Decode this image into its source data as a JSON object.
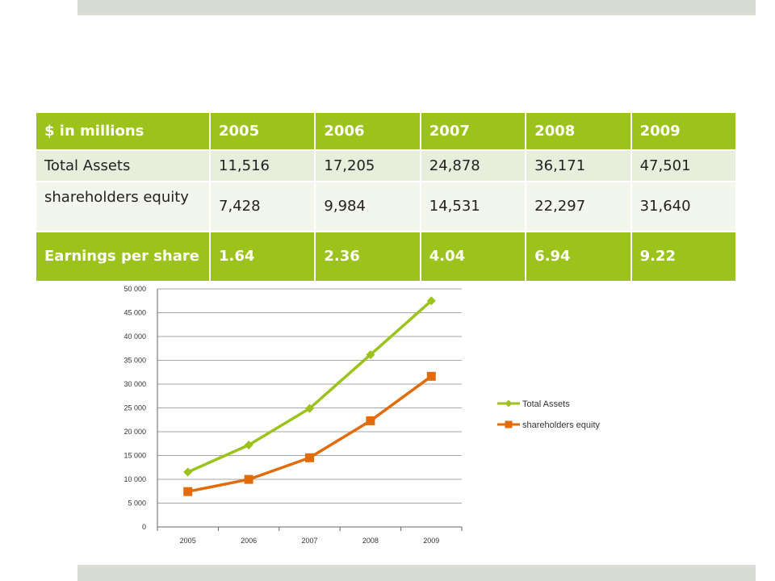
{
  "table": {
    "header": [
      "$ in millions",
      "2005",
      "2006",
      "2007",
      "2008",
      "2009"
    ],
    "rows": [
      {
        "label": "Total Assets",
        "values": [
          "11,516",
          "17,205",
          "24,878",
          "36,171",
          "47,501"
        ]
      },
      {
        "label": "shareholders equity",
        "values": [
          "7,428",
          "9,984",
          "14,531",
          "22,297",
          "31,640"
        ]
      },
      {
        "label": "Earnings per share",
        "values": [
          "1.64",
          "2.36",
          "4.04",
          "6.94",
          "9.22"
        ]
      }
    ]
  },
  "chart_data": {
    "type": "line",
    "x": [
      "2005",
      "2006",
      "2007",
      "2008",
      "2009"
    ],
    "series": [
      {
        "name": "Total Assets",
        "color": "#9bc31b",
        "marker": "diamond",
        "values": [
          11516,
          17205,
          24878,
          36171,
          47501
        ]
      },
      {
        "name": "shareholders equity",
        "color": "#e26b0a",
        "marker": "square",
        "values": [
          7428,
          9984,
          14531,
          22297,
          31640
        ]
      }
    ],
    "yticks": [
      "0",
      "5 000",
      "10 000",
      "15 000",
      "20 000",
      "25 000",
      "30 000",
      "35 000",
      "40 000",
      "45 000",
      "50 000"
    ],
    "ylim": [
      0,
      50000
    ],
    "grid": true,
    "legend": "right"
  }
}
